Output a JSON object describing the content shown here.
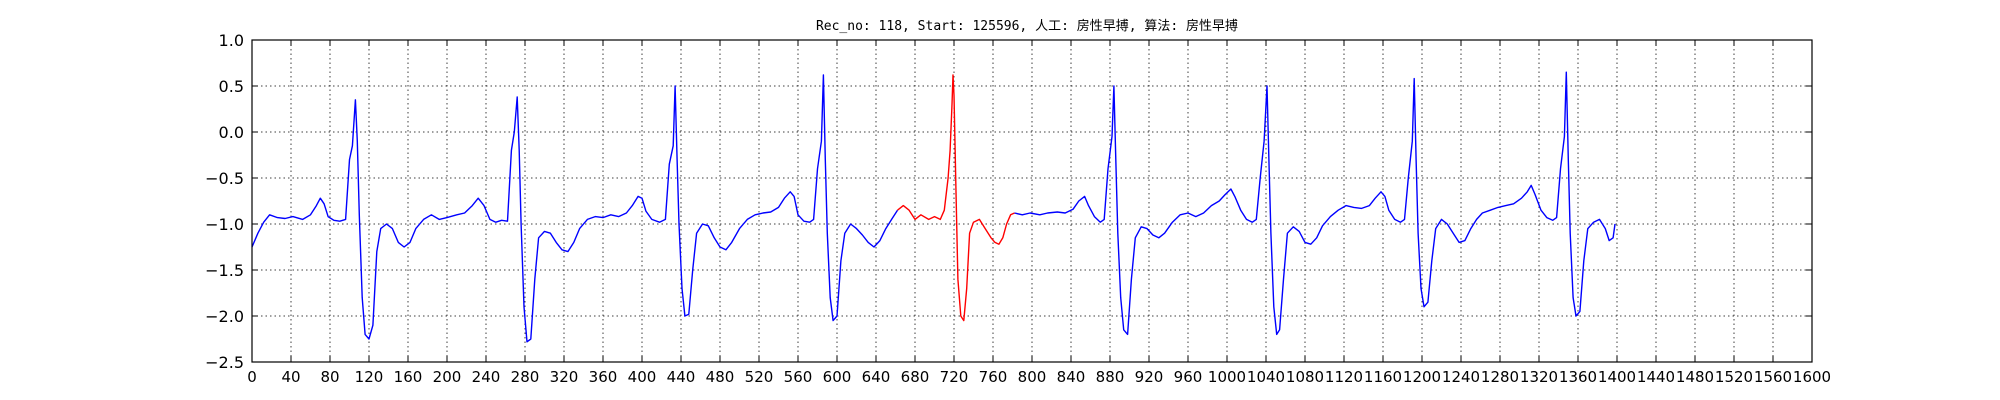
{
  "chart_data": {
    "type": "line",
    "title": "Rec_no: 118, Start: 125596, 人工: 房性早搏, 算法: 房性早搏",
    "xlabel": "",
    "ylabel": "",
    "xlim": [
      0,
      1600
    ],
    "ylim": [
      -2.5,
      1.0
    ],
    "y_ticks": [
      "1.0",
      "0.5",
      "0.0",
      "−0.5",
      "−1.0",
      "−1.5",
      "−2.0",
      "−2.5"
    ],
    "y_tick_values": [
      1.0,
      0.5,
      0.0,
      -0.5,
      -1.0,
      -1.5,
      -2.0,
      -2.5
    ],
    "x_tick_values": [
      0,
      40,
      80,
      120,
      160,
      200,
      240,
      280,
      320,
      360,
      400,
      440,
      480,
      520,
      560,
      600,
      640,
      680,
      720,
      760,
      800,
      840,
      880,
      920,
      960,
      1000,
      1040,
      1080,
      1120,
      1160,
      1200,
      1240,
      1280,
      1320,
      1360,
      1400,
      1440,
      1480,
      1520,
      1560,
      1600
    ],
    "x_ticks": [
      "0",
      "40",
      "80",
      "120",
      "160",
      "200",
      "240",
      "280",
      "320",
      "360",
      "400",
      "440",
      "480",
      "520",
      "560",
      "600",
      "640",
      "680",
      "720",
      "760",
      "800",
      "840",
      "880",
      "920",
      "960",
      "1000",
      "1040",
      "1080",
      "1120",
      "1160",
      "1200",
      "1240",
      "1280",
      "1320",
      "1360",
      "1400",
      "1440",
      "1480",
      "1520",
      "1560",
      "1600"
    ],
    "grid": true,
    "series": [
      {
        "color": "#0000ff",
        "points": [
          [
            0,
            -1.25
          ],
          [
            6,
            -1.1
          ],
          [
            12,
            -0.98
          ],
          [
            18,
            -0.9
          ],
          [
            26,
            -0.93
          ],
          [
            34,
            -0.94
          ],
          [
            42,
            -0.92
          ],
          [
            52,
            -0.95
          ],
          [
            60,
            -0.9
          ],
          [
            66,
            -0.8
          ],
          [
            70,
            -0.72
          ],
          [
            74,
            -0.78
          ],
          [
            78,
            -0.92
          ],
          [
            84,
            -0.96
          ],
          [
            90,
            -0.97
          ],
          [
            96,
            -0.95
          ],
          [
            100,
            -0.3
          ],
          [
            103,
            -0.15
          ],
          [
            106,
            0.35
          ],
          [
            108,
            -0.1
          ],
          [
            110,
            -0.9
          ],
          [
            113,
            -1.8
          ],
          [
            116,
            -2.2
          ],
          [
            120,
            -2.25
          ],
          [
            124,
            -2.1
          ],
          [
            128,
            -1.3
          ],
          [
            132,
            -1.05
          ],
          [
            138,
            -1.0
          ],
          [
            144,
            -1.05
          ],
          [
            150,
            -1.2
          ],
          [
            156,
            -1.25
          ],
          [
            162,
            -1.2
          ],
          [
            168,
            -1.05
          ],
          [
            176,
            -0.95
          ],
          [
            184,
            -0.9
          ],
          [
            192,
            -0.95
          ],
          [
            200,
            -0.93
          ],
          [
            210,
            -0.9
          ],
          [
            218,
            -0.88
          ],
          [
            226,
            -0.8
          ],
          [
            232,
            -0.72
          ],
          [
            238,
            -0.8
          ],
          [
            244,
            -0.95
          ],
          [
            250,
            -0.98
          ],
          [
            256,
            -0.96
          ],
          [
            262,
            -0.97
          ],
          [
            266,
            -0.2
          ],
          [
            269,
            0.0
          ],
          [
            272,
            0.38
          ],
          [
            274,
            -0.2
          ],
          [
            276,
            -1.0
          ],
          [
            279,
            -1.9
          ],
          [
            282,
            -2.28
          ],
          [
            286,
            -2.25
          ],
          [
            290,
            -1.6
          ],
          [
            294,
            -1.15
          ],
          [
            300,
            -1.08
          ],
          [
            306,
            -1.1
          ],
          [
            312,
            -1.2
          ],
          [
            318,
            -1.28
          ],
          [
            324,
            -1.3
          ],
          [
            330,
            -1.2
          ],
          [
            336,
            -1.05
          ],
          [
            344,
            -0.95
          ],
          [
            352,
            -0.92
          ],
          [
            360,
            -0.93
          ],
          [
            368,
            -0.9
          ],
          [
            376,
            -0.92
          ],
          [
            384,
            -0.88
          ],
          [
            390,
            -0.8
          ],
          [
            396,
            -0.7
          ],
          [
            400,
            -0.72
          ],
          [
            404,
            -0.86
          ],
          [
            410,
            -0.95
          ],
          [
            418,
            -0.98
          ],
          [
            424,
            -0.95
          ],
          [
            428,
            -0.35
          ],
          [
            432,
            -0.15
          ],
          [
            434,
            0.5
          ],
          [
            436,
            -0.3
          ],
          [
            438,
            -1.0
          ],
          [
            441,
            -1.7
          ],
          [
            444,
            -2.0
          ],
          [
            448,
            -1.98
          ],
          [
            452,
            -1.5
          ],
          [
            456,
            -1.1
          ],
          [
            462,
            -1.0
          ],
          [
            468,
            -1.02
          ],
          [
            474,
            -1.15
          ],
          [
            480,
            -1.25
          ],
          [
            486,
            -1.28
          ],
          [
            492,
            -1.2
          ],
          [
            500,
            -1.05
          ],
          [
            508,
            -0.95
          ],
          [
            516,
            -0.9
          ],
          [
            524,
            -0.88
          ],
          [
            532,
            -0.87
          ],
          [
            540,
            -0.82
          ],
          [
            546,
            -0.72
          ],
          [
            552,
            -0.65
          ],
          [
            556,
            -0.7
          ],
          [
            560,
            -0.9
          ],
          [
            566,
            -0.97
          ],
          [
            572,
            -0.98
          ],
          [
            576,
            -0.95
          ],
          [
            580,
            -0.4
          ],
          [
            584,
            -0.1
          ],
          [
            586,
            0.62
          ],
          [
            588,
            -0.3
          ],
          [
            590,
            -1.1
          ],
          [
            593,
            -1.8
          ],
          [
            596,
            -2.05
          ],
          [
            600,
            -2.0
          ],
          [
            604,
            -1.4
          ],
          [
            608,
            -1.1
          ],
          [
            614,
            -1.0
          ],
          [
            620,
            -1.05
          ],
          [
            626,
            -1.12
          ],
          [
            632,
            -1.2
          ],
          [
            638,
            -1.25
          ],
          [
            644,
            -1.18
          ],
          [
            650,
            -1.05
          ],
          [
            656,
            -0.95
          ],
          [
            662,
            -0.85
          ]
        ]
      },
      {
        "color": "#ff0000",
        "points": [
          [
            662,
            -0.85
          ],
          [
            668,
            -0.8
          ],
          [
            674,
            -0.85
          ],
          [
            680,
            -0.95
          ],
          [
            686,
            -0.9
          ],
          [
            694,
            -0.95
          ],
          [
            700,
            -0.92
          ],
          [
            706,
            -0.95
          ],
          [
            710,
            -0.85
          ],
          [
            714,
            -0.5
          ],
          [
            716,
            -0.2
          ],
          [
            718,
            0.3
          ],
          [
            719,
            0.62
          ],
          [
            720,
            0.4
          ],
          [
            722,
            -0.6
          ],
          [
            724,
            -1.6
          ],
          [
            727,
            -2.0
          ],
          [
            730,
            -2.05
          ],
          [
            733,
            -1.7
          ],
          [
            736,
            -1.1
          ],
          [
            740,
            -0.98
          ],
          [
            746,
            -0.95
          ],
          [
            752,
            -1.05
          ],
          [
            758,
            -1.15
          ],
          [
            762,
            -1.2
          ],
          [
            766,
            -1.22
          ],
          [
            770,
            -1.15
          ],
          [
            774,
            -1.0
          ],
          [
            778,
            -0.9
          ],
          [
            782,
            -0.88
          ]
        ]
      },
      {
        "color": "#0000ff",
        "points": [
          [
            782,
            -0.88
          ],
          [
            790,
            -0.9
          ],
          [
            798,
            -0.88
          ],
          [
            808,
            -0.9
          ],
          [
            816,
            -0.88
          ],
          [
            826,
            -0.87
          ],
          [
            834,
            -0.88
          ],
          [
            842,
            -0.84
          ],
          [
            848,
            -0.75
          ],
          [
            854,
            -0.7
          ],
          [
            858,
            -0.8
          ],
          [
            864,
            -0.92
          ],
          [
            870,
            -0.98
          ],
          [
            874,
            -0.95
          ],
          [
            878,
            -0.4
          ],
          [
            882,
            -0.05
          ],
          [
            884,
            0.5
          ],
          [
            886,
            -0.3
          ],
          [
            888,
            -1.1
          ],
          [
            891,
            -1.8
          ],
          [
            894,
            -2.15
          ],
          [
            898,
            -2.2
          ],
          [
            902,
            -1.6
          ],
          [
            906,
            -1.15
          ],
          [
            912,
            -1.03
          ],
          [
            918,
            -1.05
          ],
          [
            924,
            -1.12
          ],
          [
            930,
            -1.15
          ],
          [
            936,
            -1.1
          ],
          [
            944,
            -0.98
          ],
          [
            952,
            -0.9
          ],
          [
            960,
            -0.88
          ],
          [
            968,
            -0.92
          ],
          [
            976,
            -0.88
          ],
          [
            984,
            -0.8
          ],
          [
            992,
            -0.75
          ],
          [
            998,
            -0.68
          ],
          [
            1004,
            -0.62
          ],
          [
            1008,
            -0.7
          ],
          [
            1014,
            -0.85
          ],
          [
            1020,
            -0.95
          ],
          [
            1026,
            -0.98
          ],
          [
            1030,
            -0.95
          ],
          [
            1034,
            -0.5
          ],
          [
            1038,
            -0.1
          ],
          [
            1041,
            0.5
          ],
          [
            1043,
            -0.3
          ],
          [
            1045,
            -1.1
          ],
          [
            1048,
            -1.9
          ],
          [
            1051,
            -2.2
          ],
          [
            1054,
            -2.15
          ],
          [
            1058,
            -1.6
          ],
          [
            1062,
            -1.1
          ],
          [
            1068,
            -1.03
          ],
          [
            1074,
            -1.08
          ],
          [
            1080,
            -1.2
          ],
          [
            1086,
            -1.22
          ],
          [
            1092,
            -1.15
          ],
          [
            1098,
            -1.02
          ],
          [
            1106,
            -0.92
          ],
          [
            1114,
            -0.85
          ],
          [
            1122,
            -0.8
          ],
          [
            1130,
            -0.82
          ],
          [
            1138,
            -0.83
          ],
          [
            1146,
            -0.8
          ],
          [
            1152,
            -0.72
          ],
          [
            1158,
            -0.65
          ],
          [
            1162,
            -0.7
          ],
          [
            1166,
            -0.85
          ],
          [
            1172,
            -0.95
          ],
          [
            1178,
            -0.98
          ],
          [
            1182,
            -0.95
          ],
          [
            1186,
            -0.5
          ],
          [
            1190,
            -0.1
          ],
          [
            1192,
            0.58
          ],
          [
            1194,
            -0.3
          ],
          [
            1196,
            -1.1
          ],
          [
            1199,
            -1.7
          ],
          [
            1202,
            -1.9
          ],
          [
            1206,
            -1.85
          ],
          [
            1210,
            -1.4
          ],
          [
            1214,
            -1.05
          ],
          [
            1220,
            -0.95
          ],
          [
            1226,
            -1.0
          ],
          [
            1232,
            -1.1
          ],
          [
            1238,
            -1.2
          ],
          [
            1244,
            -1.18
          ],
          [
            1250,
            -1.05
          ],
          [
            1256,
            -0.95
          ],
          [
            1262,
            -0.88
          ],
          [
            1270,
            -0.85
          ],
          [
            1278,
            -0.82
          ],
          [
            1286,
            -0.8
          ],
          [
            1294,
            -0.78
          ],
          [
            1302,
            -0.72
          ],
          [
            1308,
            -0.65
          ],
          [
            1312,
            -0.58
          ],
          [
            1316,
            -0.68
          ],
          [
            1322,
            -0.85
          ],
          [
            1328,
            -0.93
          ],
          [
            1334,
            -0.96
          ],
          [
            1338,
            -0.93
          ],
          [
            1342,
            -0.4
          ],
          [
            1346,
            -0.05
          ],
          [
            1348,
            0.65
          ],
          [
            1350,
            -0.3
          ],
          [
            1352,
            -1.1
          ],
          [
            1355,
            -1.8
          ],
          [
            1358,
            -2.0
          ],
          [
            1362,
            -1.95
          ],
          [
            1366,
            -1.4
          ],
          [
            1370,
            -1.05
          ],
          [
            1376,
            -0.98
          ],
          [
            1382,
            -0.95
          ],
          [
            1388,
            -1.05
          ],
          [
            1392,
            -1.18
          ],
          [
            1396,
            -1.15
          ],
          [
            1398,
            -1.0
          ]
        ]
      }
    ]
  }
}
